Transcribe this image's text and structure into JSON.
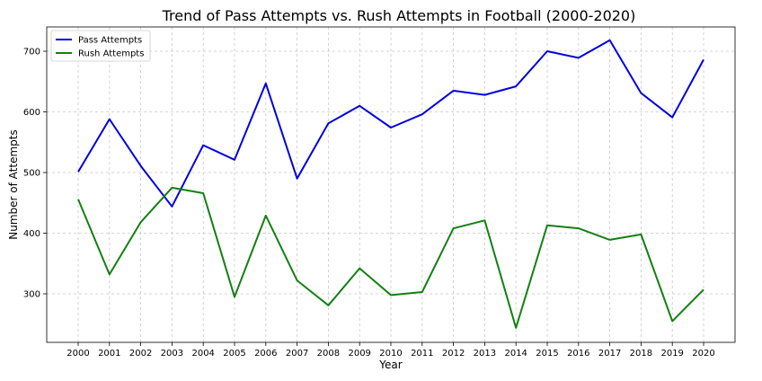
{
  "chart_data": {
    "type": "line",
    "title": "Trend of Pass Attempts vs. Rush Attempts in Football (2000-2020)",
    "xlabel": "Year",
    "ylabel": "Number of Attempts",
    "x": [
      2000,
      2001,
      2002,
      2003,
      2004,
      2005,
      2006,
      2007,
      2008,
      2009,
      2010,
      2011,
      2012,
      2013,
      2014,
      2015,
      2016,
      2017,
      2018,
      2019,
      2020
    ],
    "ylim": [
      220,
      740
    ],
    "yticks": [
      300,
      400,
      500,
      600,
      700
    ],
    "grid": true,
    "legend_position": "top-left",
    "series": [
      {
        "name": "Pass Attempts",
        "color": "#0000dd",
        "values": [
          501,
          588,
          511,
          444,
          545,
          521,
          647,
          490,
          581,
          610,
          574,
          596,
          635,
          628,
          642,
          700,
          689,
          718,
          631,
          591,
          686
        ]
      },
      {
        "name": "Rush Attempts",
        "color": "#138013",
        "values": [
          456,
          332,
          418,
          475,
          466,
          295,
          429,
          322,
          281,
          342,
          298,
          303,
          408,
          421,
          244,
          413,
          408,
          389,
          398,
          255,
          307
        ]
      }
    ]
  }
}
